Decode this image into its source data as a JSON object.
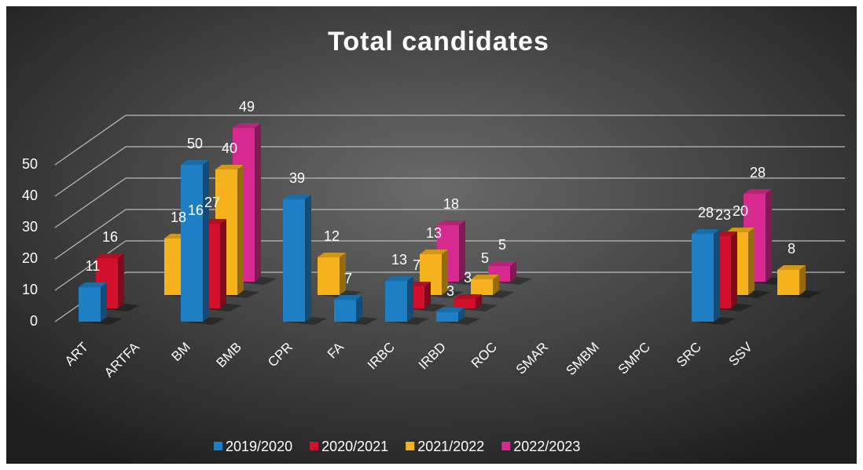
{
  "chart_data": {
    "type": "bar3d",
    "title": "Total candidates",
    "categories": [
      "ART",
      "ARTFA",
      "BM",
      "BMB",
      "CPR",
      "FA",
      "IRBC",
      "IRBD",
      "ROC",
      "SMAR",
      "SMBM",
      "SMPC",
      "SRC",
      "SSV"
    ],
    "series": [
      {
        "name": "2019/2020",
        "color": "#1f7fc4",
        "values": [
          11,
          null,
          50,
          null,
          39,
          7,
          13,
          3,
          null,
          null,
          null,
          null,
          28,
          null
        ]
      },
      {
        "name": "2020/2021",
        "color": "#d3102c",
        "values": [
          16,
          null,
          27,
          null,
          null,
          null,
          7,
          3,
          null,
          null,
          null,
          null,
          23,
          null
        ]
      },
      {
        "name": "2021/2022",
        "color": "#f6b21d",
        "values": [
          null,
          18,
          40,
          null,
          12,
          null,
          13,
          5,
          null,
          null,
          null,
          null,
          20,
          8
        ]
      },
      {
        "name": "2022/2023",
        "color": "#d62a90",
        "values": [
          null,
          16,
          49,
          null,
          null,
          null,
          18,
          5,
          null,
          null,
          null,
          null,
          28,
          null
        ]
      }
    ],
    "ylim": [
      0,
      50
    ],
    "yticks": [
      0,
      10,
      20,
      30,
      40,
      50
    ],
    "grid": true,
    "legend": "bottom"
  }
}
